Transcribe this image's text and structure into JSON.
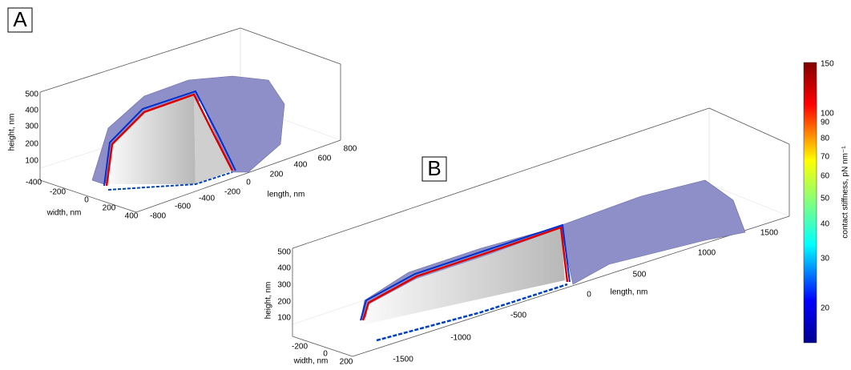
{
  "panels": [
    {
      "label": "A",
      "height_label": "height, nm",
      "height_ticks": [
        "500",
        "400",
        "300",
        "200",
        "100"
      ],
      "width_label": "width, nm",
      "width_ticks": [
        "-400",
        "-200",
        "0",
        "200",
        "400"
      ],
      "length_label": "length, nm",
      "length_ticks": [
        "-800",
        "-600",
        "-400",
        "-200",
        "0",
        "200",
        "400",
        "600",
        "800"
      ]
    },
    {
      "label": "B",
      "height_label": "height, nm",
      "height_ticks": [
        "500",
        "400",
        "300",
        "200",
        "100"
      ],
      "width_label": "width, nm",
      "width_ticks": [
        "-200",
        "0",
        "200"
      ],
      "length_label": "length, nm",
      "length_ticks": [
        "-1500",
        "-1000",
        "-500",
        "0",
        "500",
        "1000",
        "1500"
      ]
    }
  ],
  "colorbar": {
    "label": "contact stiffness, pN nm⁻¹",
    "ticks": [
      "150",
      "100",
      "90",
      "80",
      "70",
      "60",
      "50",
      "40",
      "30",
      "20"
    ]
  }
}
